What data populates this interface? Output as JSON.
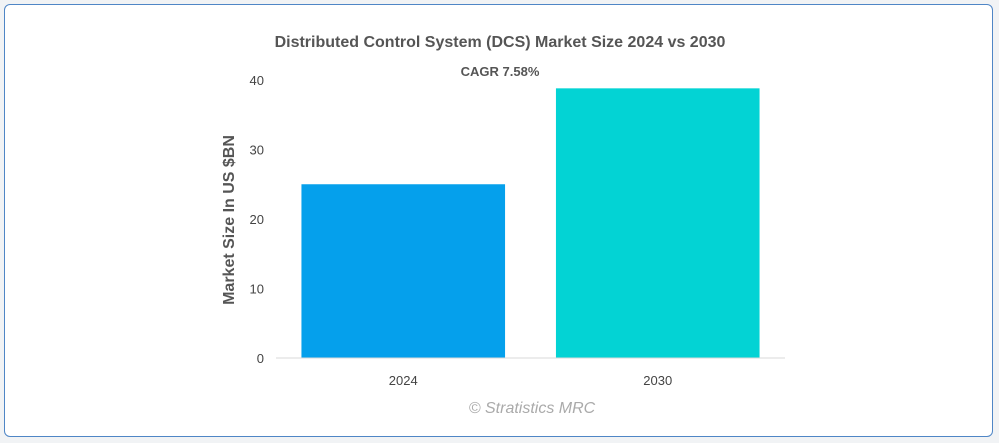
{
  "chart_data": {
    "type": "bar",
    "title": "Distributed Control System (DCS) Market Size 2024 vs 2030",
    "annotation": "CAGR 7.58%",
    "categories": [
      "2024",
      "2030"
    ],
    "values": [
      25.0,
      38.8
    ],
    "colors": [
      "#05a0ec",
      "#03d3d4"
    ],
    "xlabel": "",
    "ylabel": "Market Size In US $BN",
    "ylim": [
      0,
      40
    ],
    "yticks": [
      "0",
      "10",
      "20",
      "30",
      "40"
    ],
    "grid": false,
    "legend": "none"
  },
  "watermark": "© Stratistics MRC"
}
